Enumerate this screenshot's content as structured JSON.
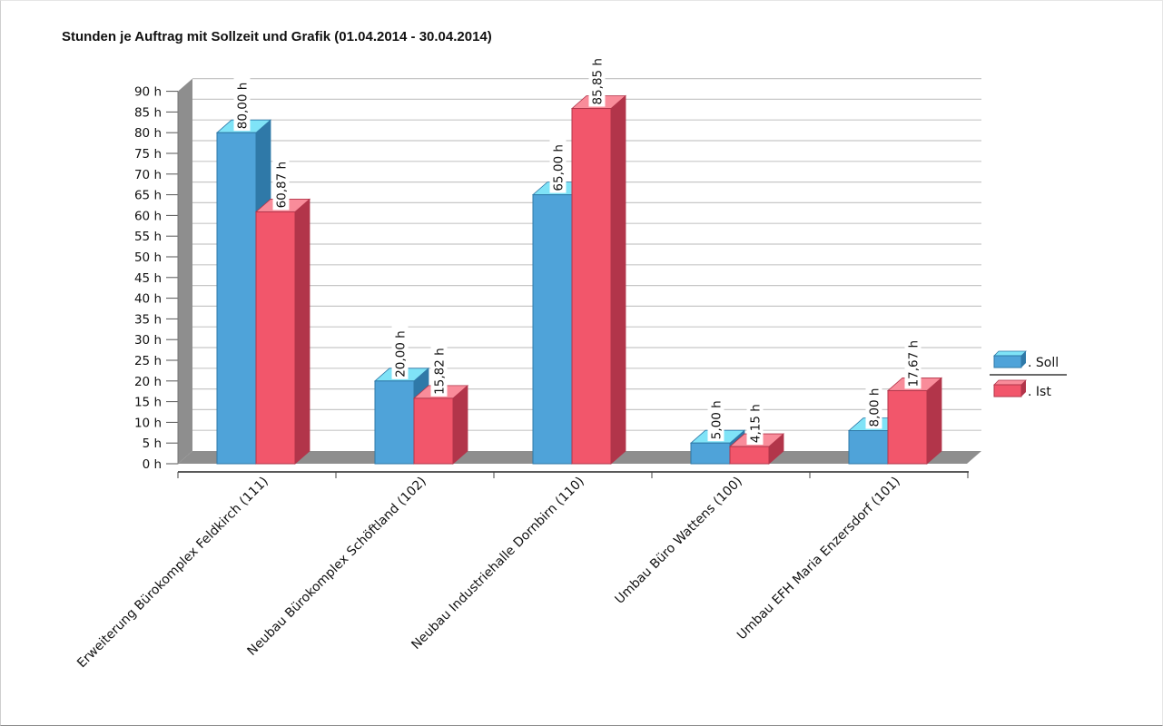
{
  "chart_data": {
    "type": "bar",
    "title": "Stunden je Auftrag mit Sollzeit und Grafik (01.04.2014 - 30.04.2014)",
    "categories": [
      "Erweiterung Bürokomplex Feldkirch (111)",
      "Neubau Bürokomplex Schöftland (102)",
      "Neubau Industriehalle Dornbirn (110)",
      "Umbau Büro Wattens (100)",
      "Umbau EFH Maria Enzersdorf (101)"
    ],
    "series": [
      {
        "name": "Soll",
        "legend_label": ".  Soll",
        "values": [
          80.0,
          20.0,
          65.0,
          5.0,
          8.0
        ],
        "labels": [
          "80,00 h",
          "20,00 h",
          "65,00 h",
          "5,00 h",
          "8,00 h"
        ]
      },
      {
        "name": "Ist",
        "legend_label": ".  Ist",
        "values": [
          60.87,
          15.82,
          85.85,
          4.15,
          17.67
        ],
        "labels": [
          "60,87 h",
          "15,82 h",
          "85,85 h",
          "4,15 h",
          "17,67 h"
        ]
      }
    ],
    "ylim": [
      0,
      90
    ],
    "yticks": [
      0,
      5,
      10,
      15,
      20,
      25,
      30,
      35,
      40,
      45,
      50,
      55,
      60,
      65,
      70,
      75,
      80,
      85,
      90
    ],
    "ytick_labels": [
      "0 h",
      "5 h",
      "10 h",
      "15 h",
      "20 h",
      "25 h",
      "30 h",
      "35 h",
      "40 h",
      "45 h",
      "50 h",
      "55 h",
      "60 h",
      "65 h",
      "70 h",
      "75 h",
      "80 h",
      "85 h",
      "90 h"
    ],
    "xlabel": "",
    "ylabel": "",
    "grid": true,
    "style": "3d",
    "legend_position": "right"
  },
  "colors": {
    "soll_front": "#4fa3d9",
    "soll_top": "#7fe3f7",
    "soll_side": "#2f79a8",
    "ist_front": "#f2566b",
    "ist_top": "#f98c9a",
    "ist_side": "#b2354a",
    "wall": "#8e8e8e",
    "gridline": "#c7c7c7"
  }
}
